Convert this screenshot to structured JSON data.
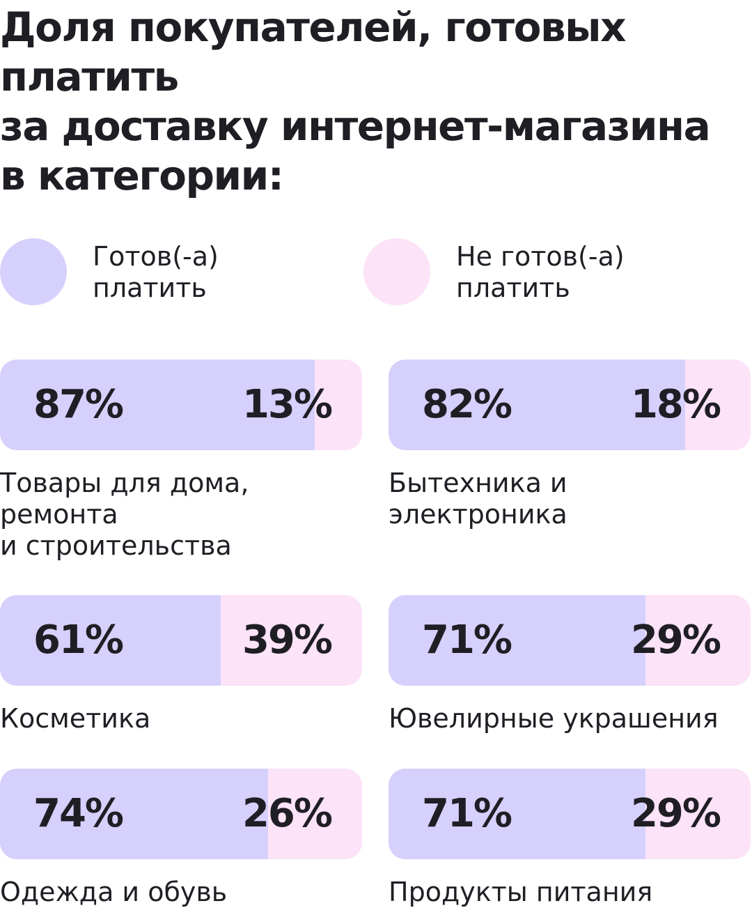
{
  "title_lines": [
    "Доля покупателей, готовых",
    "платить",
    "за доставку интернет-магазина",
    "в категории:"
  ],
  "legend": [
    {
      "label": "Готов(-а)\nплатить",
      "color": "#d6d0fc"
    },
    {
      "label": "Не готов(-а)\nплатить",
      "color": "#fce3f8"
    }
  ],
  "chart_data": {
    "type": "bar",
    "stacked": true,
    "orientation": "horizontal",
    "categories": [
      "Товары для дома,\nремонта\nи строительства",
      "Бытехника и\nэлектроника",
      "Косметика",
      "Ювелирные украшения",
      "Одежда и обувь",
      "Продукты питания"
    ],
    "series": [
      {
        "name": "Готов(-а) платить",
        "values": [
          87,
          82,
          61,
          71,
          74,
          71
        ],
        "labels": [
          "87%",
          "82%",
          "61%",
          "71%",
          "74%",
          "71%"
        ]
      },
      {
        "name": "Не готов(-а) платить",
        "values": [
          13,
          18,
          39,
          29,
          26,
          29
        ],
        "labels": [
          "13%",
          "18%",
          "39%",
          "29%",
          "26%",
          "29%"
        ]
      }
    ],
    "colors": {
      "ready": "#d6d0fc",
      "not_ready": "#fce3f8"
    }
  }
}
